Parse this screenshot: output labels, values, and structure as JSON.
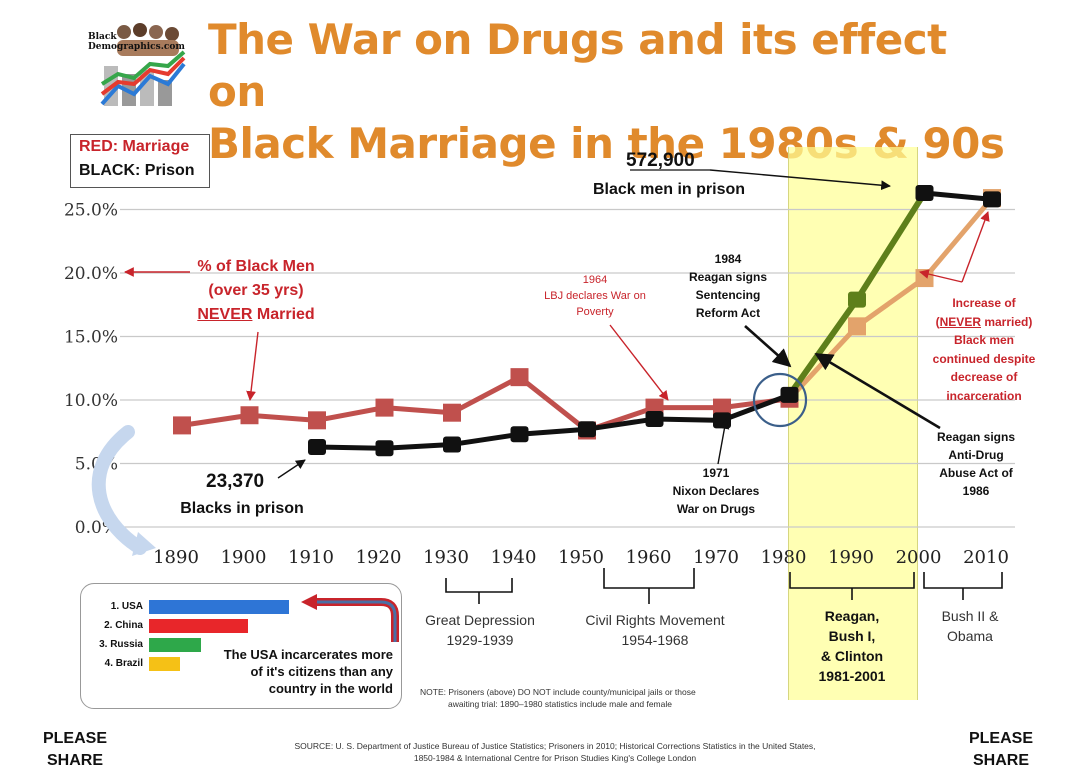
{
  "header": {
    "logo_name": "Black Demographics.com",
    "logo_line1": "Black",
    "logo_line2": "Demographics.com",
    "title_line1": "The War on Drugs and its effect on",
    "title_line2": "Black Marriage in the 1980s & 90s"
  },
  "legend": {
    "red": "RED: Marriage",
    "black": "BLACK: Prison"
  },
  "chart_data": {
    "type": "line",
    "title": "The War on Drugs and its effect on Black Marriage in the 1980s & 90s",
    "x": [
      1890,
      1900,
      1910,
      1920,
      1930,
      1940,
      1950,
      1960,
      1970,
      1980,
      1990,
      2000,
      2010
    ],
    "x_tick_labels": [
      "1890",
      "1900",
      "1910",
      "1920",
      "1930",
      "1940",
      "1950",
      "1960",
      "1970",
      "1980",
      "1990",
      "2000",
      "2010"
    ],
    "y_tick_labels": [
      "0.0%",
      "5.0%",
      "10.0%",
      "15.0%",
      "20.0%",
      "25.0%"
    ],
    "ylim": [
      0,
      25
    ],
    "series": [
      {
        "name": "% of Black Men (over 35 yrs) NEVER Married",
        "color": "#c0504d",
        "values": [
          8.0,
          8.8,
          8.4,
          9.4,
          9.0,
          11.8,
          7.6,
          9.4,
          9.4,
          10.1,
          15.8,
          19.6,
          25.9
        ]
      },
      {
        "name": "Black men in prison",
        "color": "#111111",
        "color_post1980": "#5e7f1a",
        "values": [
          null,
          null,
          6.3,
          6.2,
          6.5,
          7.3,
          7.7,
          8.5,
          8.4,
          10.4,
          17.9,
          26.3,
          25.8
        ]
      }
    ],
    "grid": true,
    "highlight_region": {
      "from": 1980,
      "to": 2000,
      "color": "#ffff99"
    }
  },
  "annotations": {
    "never_married_1": "% of Black Men",
    "never_married_2": "(over 35 yrs)",
    "never_married_3a": "NEVER",
    "never_married_3b": " Married",
    "lbj_1": "1964",
    "lbj_2": "LBJ declares War on",
    "lbj_3": "Poverty",
    "reagan84_1": "1984",
    "reagan84_2": "Reagan signs",
    "reagan84_3": "Sentencing",
    "reagan84_4": "Reform Act",
    "prison_572": "572,900",
    "prison_572_label": "Black men in prison",
    "prison_23": "23,370",
    "prison_23_label": "Blacks in prison",
    "nixon_1": "1971",
    "nixon_2": "Nixon Declares",
    "nixon_3": "War on Drugs",
    "increase_1": "Increase of",
    "increase_2a": "(",
    "increase_2b": "NEVER",
    "increase_2c": " married)",
    "increase_3": "Black men",
    "increase_4": "continued despite",
    "increase_5": "decrease of",
    "increase_6": "incarceration",
    "antidrug_1": "Reagan signs",
    "antidrug_2": "Anti-Drug",
    "antidrug_3": "Abuse Act of",
    "antidrug_4": "1986"
  },
  "eras": {
    "depression_1": "Great Depression",
    "depression_2": "1929-1939",
    "civil_1": "Civil Rights Movement",
    "civil_2": "1954-1968",
    "reagan_1": "Reagan,",
    "reagan_2": "Bush I,",
    "reagan_3": "& Clinton",
    "reagan_4": "1981-2001",
    "bush_1": "Bush II &",
    "bush_2": "Obama"
  },
  "inset": {
    "countries": [
      {
        "label": "1. USA",
        "value": 100,
        "color": "#2e75d6"
      },
      {
        "label": "2. China",
        "value": 71,
        "color": "#e8262a"
      },
      {
        "label": "3. Russia",
        "value": 37,
        "color": "#2ea84a"
      },
      {
        "label": "4. Brazil",
        "value": 22,
        "color": "#f5c116"
      }
    ],
    "caption_1": "The USA incarcerates more",
    "caption_2": "of it's citizens than any",
    "caption_3": "country in the world"
  },
  "notes": {
    "note_1": "NOTE: Prisoners (above) DO NOT include county/municipal jails or those",
    "note_2": "awaiting trial: 1890–1980 statistics include male and female",
    "source_1": "SOURCE: U. S. Department of Justice Bureau of Justice Statistics; Prisoners in 2010; Historical Corrections Statistics in the United States,",
    "source_2": "1850-1984 & International Centre for Prison Studies King's College London"
  },
  "share": {
    "left_1": "PLEASE",
    "left_2": "SHARE",
    "right_1": "PLEASE",
    "right_2": "SHARE"
  }
}
